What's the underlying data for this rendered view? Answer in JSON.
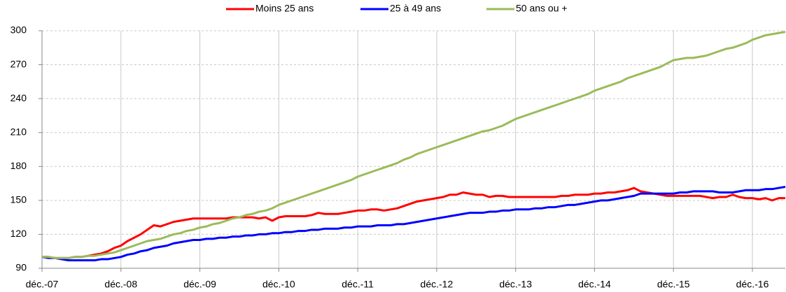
{
  "chart_data": {
    "type": "line",
    "categories": [
      "déc.-07",
      null,
      null,
      null,
      null,
      null,
      null,
      null,
      null,
      null,
      null,
      null,
      "déc.-08",
      null,
      null,
      null,
      null,
      null,
      null,
      null,
      null,
      null,
      null,
      null,
      "déc.-09",
      null,
      null,
      null,
      null,
      null,
      null,
      null,
      null,
      null,
      null,
      null,
      "déc.-10",
      null,
      null,
      null,
      null,
      null,
      null,
      null,
      null,
      null,
      null,
      null,
      "déc.-11",
      null,
      null,
      null,
      null,
      null,
      null,
      null,
      null,
      null,
      null,
      null,
      "déc.-12",
      null,
      null,
      null,
      null,
      null,
      null,
      null,
      null,
      null,
      null,
      null,
      "déc.-13",
      null,
      null,
      null,
      null,
      null,
      null,
      null,
      null,
      null,
      null,
      null,
      "déc.-14",
      null,
      null,
      null,
      null,
      null,
      null,
      null,
      null,
      null,
      null,
      null,
      "déc.-15",
      null,
      null,
      null,
      null,
      null,
      null,
      null,
      null,
      null,
      null,
      null,
      "déc.-16",
      null,
      null,
      null,
      null,
      null
    ],
    "series": [
      {
        "name": "Moins 25 ans",
        "color": "#ff0000",
        "values": [
          100,
          100,
          99,
          99,
          99,
          100,
          100,
          101,
          102,
          103,
          105,
          108,
          110,
          114,
          117,
          120,
          124,
          128,
          127,
          129,
          131,
          132,
          133,
          134,
          134,
          134,
          134,
          134,
          134,
          135,
          135,
          135,
          135,
          134,
          135,
          132,
          135,
          136,
          136,
          136,
          136,
          137,
          139,
          138,
          138,
          138,
          139,
          140,
          141,
          141,
          142,
          142,
          141,
          142,
          143,
          145,
          147,
          149,
          150,
          151,
          152,
          153,
          155,
          155,
          157,
          156,
          155,
          155,
          153,
          154,
          154,
          153,
          153,
          153,
          153,
          153,
          153,
          153,
          153,
          154,
          154,
          155,
          155,
          155,
          156,
          156,
          157,
          157,
          158,
          159,
          161,
          158,
          157,
          156,
          155,
          154,
          154,
          154,
          154,
          154,
          154,
          153,
          152,
          153,
          153,
          155,
          153,
          152,
          152,
          151,
          152,
          150,
          152,
          152
        ]
      },
      {
        "name": "25 à 49 ans",
        "color": "#0000ff",
        "values": [
          100,
          99,
          99,
          98,
          97,
          97,
          97,
          97,
          97,
          98,
          98,
          99,
          100,
          102,
          103,
          105,
          106,
          108,
          109,
          110,
          112,
          113,
          114,
          115,
          115,
          116,
          116,
          117,
          117,
          118,
          118,
          119,
          119,
          120,
          120,
          121,
          121,
          122,
          122,
          123,
          123,
          124,
          124,
          125,
          125,
          125,
          126,
          126,
          127,
          127,
          127,
          128,
          128,
          128,
          129,
          129,
          130,
          131,
          132,
          133,
          134,
          135,
          136,
          137,
          138,
          139,
          139,
          139,
          140,
          140,
          141,
          141,
          142,
          142,
          142,
          143,
          143,
          144,
          144,
          145,
          146,
          146,
          147,
          148,
          149,
          150,
          150,
          151,
          152,
          153,
          154,
          156,
          156,
          156,
          156,
          156,
          156,
          157,
          157,
          158,
          158,
          158,
          158,
          157,
          157,
          157,
          158,
          159,
          159,
          159,
          160,
          160,
          161,
          162
        ]
      },
      {
        "name": "50 ans ou +",
        "color": "#9bbb59",
        "values": [
          100,
          100,
          99,
          99,
          99,
          100,
          100,
          101,
          101,
          102,
          103,
          104,
          106,
          108,
          110,
          112,
          114,
          115,
          116,
          118,
          120,
          121,
          123,
          124,
          126,
          127,
          129,
          130,
          132,
          134,
          135,
          137,
          138,
          140,
          141,
          143,
          146,
          148,
          150,
          152,
          154,
          156,
          158,
          160,
          162,
          164,
          166,
          168,
          171,
          173,
          175,
          177,
          179,
          181,
          183,
          186,
          188,
          191,
          193,
          195,
          197,
          199,
          201,
          203,
          205,
          207,
          209,
          211,
          212,
          214,
          216,
          219,
          222,
          224,
          226,
          228,
          230,
          232,
          234,
          236,
          238,
          240,
          242,
          244,
          247,
          249,
          251,
          253,
          255,
          258,
          260,
          262,
          264,
          266,
          268,
          271,
          274,
          275,
          276,
          276,
          277,
          278,
          280,
          282,
          284,
          285,
          287,
          289,
          292,
          294,
          296,
          297,
          298,
          299
        ]
      }
    ],
    "ylim": [
      90,
      300
    ],
    "yticks": [
      90,
      120,
      150,
      180,
      210,
      240,
      270,
      300
    ],
    "grid": true,
    "legend": "top"
  }
}
